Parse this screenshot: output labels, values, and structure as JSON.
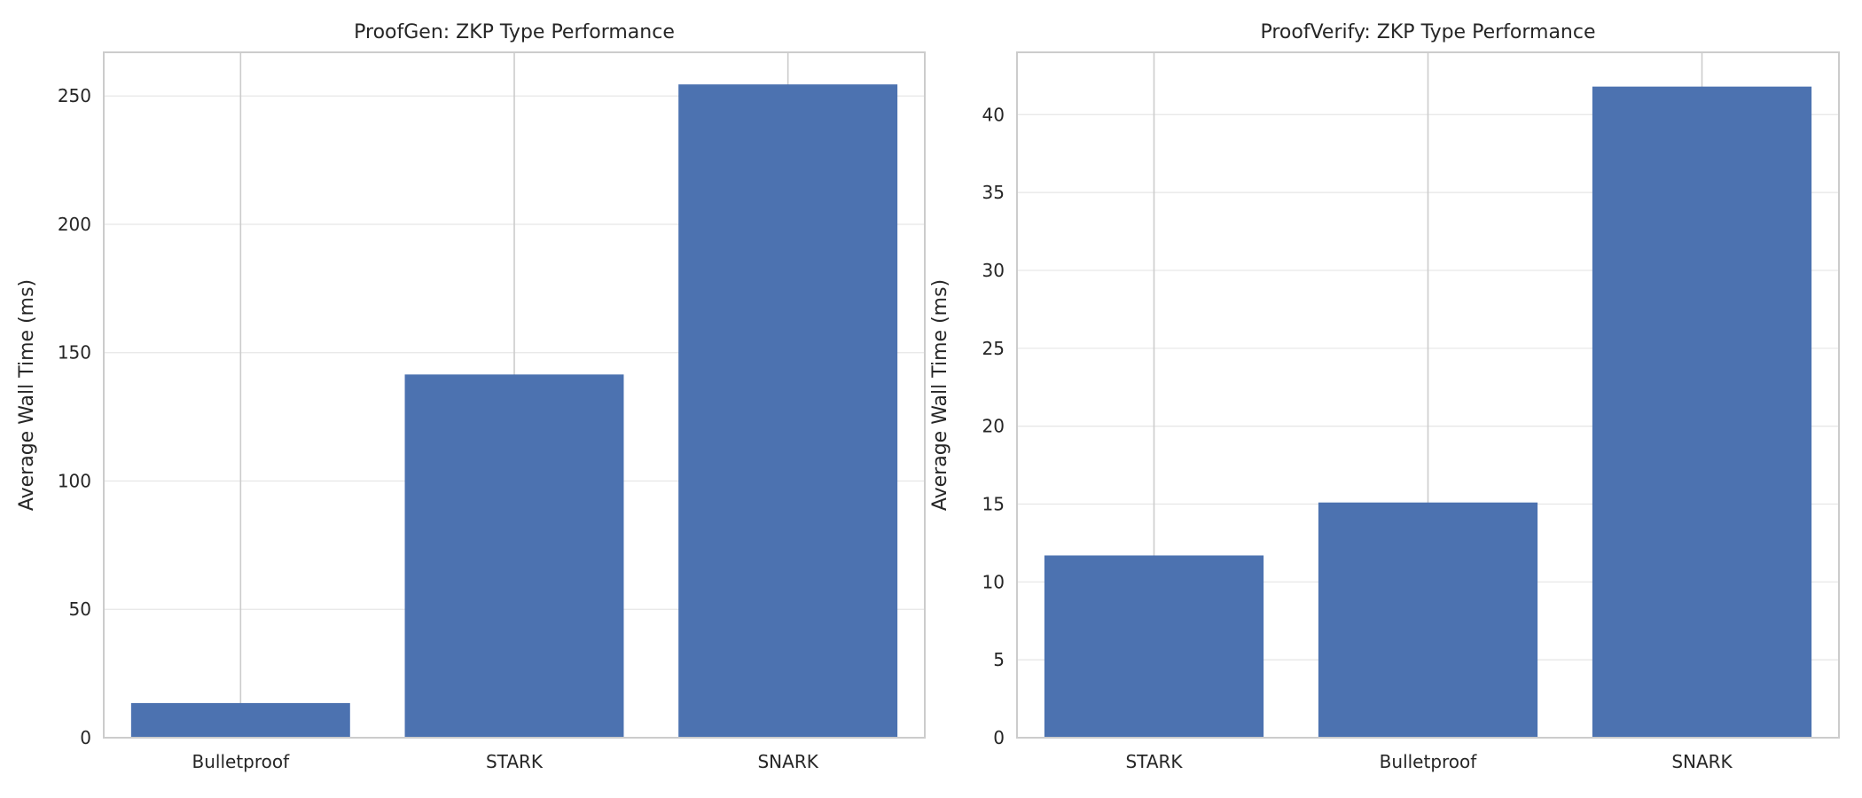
{
  "chart_data": [
    {
      "type": "bar",
      "title": "ProofGen: ZKP Type Performance",
      "xlabel": "",
      "ylabel": "Average Wall Time (ms)",
      "categories": [
        "Bulletproof",
        "STARK",
        "SNARK"
      ],
      "values": [
        13.5,
        141.5,
        254.5
      ],
      "ylim": [
        0,
        267
      ],
      "yticks": [
        0,
        50,
        100,
        150,
        200,
        250
      ],
      "grid": "y",
      "bar_color": "#4c72b0"
    },
    {
      "type": "bar",
      "title": "ProofVerify: ZKP Type Performance",
      "xlabel": "",
      "ylabel": "Average Wall Time (ms)",
      "categories": [
        "STARK",
        "Bulletproof",
        "SNARK"
      ],
      "values": [
        11.7,
        15.1,
        41.8
      ],
      "ylim": [
        0,
        44
      ],
      "yticks": [
        0,
        5,
        10,
        15,
        20,
        25,
        30,
        35,
        40
      ],
      "grid": "y",
      "bar_color": "#4c72b0"
    }
  ]
}
